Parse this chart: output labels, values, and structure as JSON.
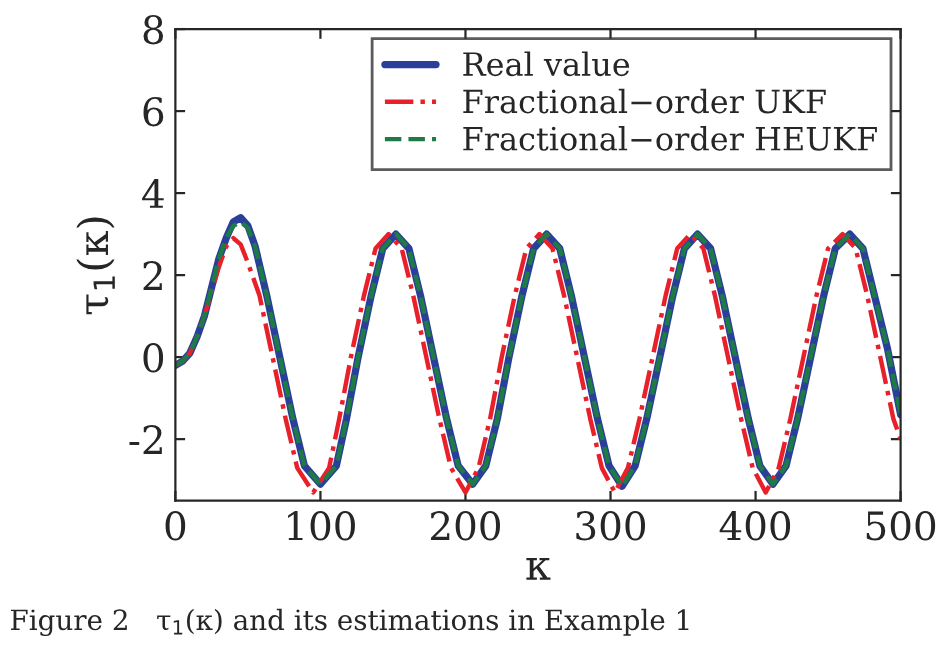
{
  "chart_data": {
    "type": "line",
    "xlabel": "κ",
    "ylabel": "τ$_{1}$(κ)",
    "xlim": [
      0,
      500
    ],
    "xticks": [
      0,
      100,
      200,
      300,
      400,
      500
    ],
    "ylim": [
      -3.5,
      8
    ],
    "yticks": [
      -2,
      0,
      2,
      4,
      6,
      8
    ],
    "grid": false,
    "legend": "top right",
    "annotations": [
      "Figure 2   τ$_{1}$(κ) and its estimations in Example 1"
    ],
    "series": [
      {
        "name": "Real value",
        "color": "#2a3f9a",
        "line_style": "solid",
        "x": [
          0,
          5,
          10,
          15,
          20,
          25,
          30,
          35,
          40,
          45,
          50,
          55,
          63,
          72,
          81,
          89,
          100,
          111,
          118,
          126,
          135,
          143,
          152,
          161,
          169,
          178,
          187,
          195,
          205,
          214,
          222,
          230,
          239,
          247,
          256,
          265,
          273,
          282,
          291,
          299,
          308,
          317,
          325,
          334,
          343,
          351,
          360,
          369,
          377,
          386,
          395,
          403,
          412,
          421,
          429,
          438,
          447,
          455,
          465,
          474,
          482,
          491,
          500
        ],
        "values": [
          -0.2,
          -0.1,
          0.1,
          0.5,
          1.0,
          1.7,
          2.4,
          2.9,
          3.3,
          3.4,
          3.2,
          2.7,
          1.5,
          0,
          -1.5,
          -2.65,
          -3.1,
          -2.65,
          -1.5,
          0,
          1.5,
          2.65,
          3.0,
          2.65,
          1.5,
          0,
          -1.5,
          -2.65,
          -3.1,
          -2.65,
          -1.5,
          0,
          1.5,
          2.65,
          3.0,
          2.65,
          1.5,
          0,
          -1.5,
          -2.65,
          -3.15,
          -2.65,
          -1.5,
          0,
          1.5,
          2.65,
          3.0,
          2.65,
          1.5,
          0,
          -1.5,
          -2.65,
          -3.1,
          -2.65,
          -1.5,
          0,
          1.5,
          2.65,
          3.0,
          2.65,
          1.5,
          0.2,
          -1.4
        ]
      },
      {
        "name": "Fractional−order UKF",
        "color": "#e8202a",
        "line_style": "dashdot",
        "x": [
          0,
          5,
          10,
          15,
          20,
          25,
          30,
          35,
          40,
          45,
          50,
          58,
          67,
          76,
          84,
          95,
          106,
          113,
          121,
          130,
          138,
          147,
          156,
          164,
          173,
          182,
          190,
          200,
          209,
          217,
          225,
          234,
          242,
          251,
          260,
          268,
          277,
          286,
          294,
          303,
          312,
          320,
          329,
          338,
          346,
          355,
          364,
          372,
          381,
          390,
          398,
          407,
          416,
          424,
          433,
          442,
          450,
          460,
          469,
          477,
          486,
          495,
          500
        ],
        "values": [
          -0.2,
          -0.1,
          0.1,
          0.5,
          1.0,
          1.6,
          2.2,
          2.7,
          2.9,
          2.75,
          2.3,
          1.5,
          0,
          -1.5,
          -2.7,
          -3.3,
          -2.7,
          -1.5,
          0,
          1.5,
          2.65,
          3.0,
          2.65,
          1.5,
          0,
          -1.5,
          -2.7,
          -3.3,
          -2.7,
          -1.5,
          0,
          1.5,
          2.65,
          3.0,
          2.65,
          1.5,
          0,
          -1.5,
          -2.7,
          -3.3,
          -2.7,
          -1.5,
          0,
          1.5,
          2.65,
          3.0,
          2.65,
          1.5,
          0,
          -1.5,
          -2.7,
          -3.3,
          -2.7,
          -1.5,
          0,
          1.5,
          2.65,
          3.0,
          2.65,
          1.5,
          0,
          -1.5,
          -2.0
        ]
      },
      {
        "name": "Fractional−order HEUKF",
        "color": "#1e7a46",
        "line_style": "dashed",
        "x": [
          0,
          5,
          10,
          15,
          20,
          25,
          30,
          35,
          40,
          45,
          50,
          55,
          63,
          72,
          81,
          89,
          100,
          111,
          118,
          126,
          135,
          143,
          152,
          161,
          169,
          178,
          187,
          195,
          205,
          214,
          222,
          230,
          239,
          247,
          256,
          265,
          273,
          282,
          291,
          299,
          308,
          317,
          325,
          334,
          343,
          351,
          360,
          369,
          377,
          386,
          395,
          403,
          412,
          421,
          429,
          438,
          447,
          455,
          465,
          474,
          482,
          491,
          500
        ],
        "values": [
          -0.2,
          -0.1,
          0.1,
          0.5,
          1.0,
          1.7,
          2.4,
          2.9,
          3.2,
          3.3,
          3.15,
          2.7,
          1.5,
          0,
          -1.5,
          -2.65,
          -3.1,
          -2.65,
          -1.5,
          0,
          1.5,
          2.65,
          3.0,
          2.65,
          1.5,
          0,
          -1.5,
          -2.65,
          -3.1,
          -2.65,
          -1.5,
          0,
          1.5,
          2.65,
          3.0,
          2.65,
          1.5,
          0,
          -1.5,
          -2.65,
          -3.15,
          -2.65,
          -1.5,
          0,
          1.5,
          2.65,
          3.0,
          2.65,
          1.5,
          0,
          -1.5,
          -2.65,
          -3.1,
          -2.65,
          -1.5,
          0,
          1.5,
          2.65,
          3.0,
          2.65,
          1.5,
          0.2,
          -1.4
        ]
      }
    ]
  }
}
